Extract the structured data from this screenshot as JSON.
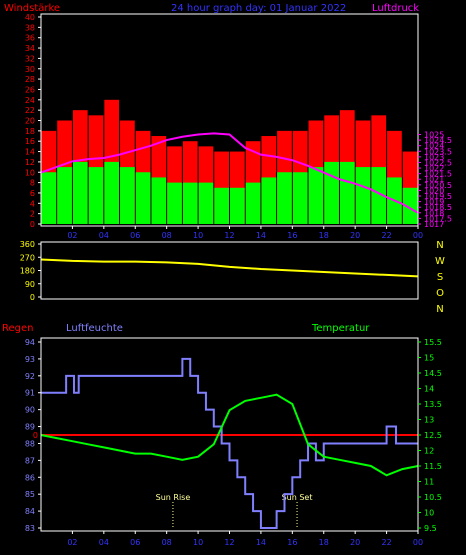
{
  "colors": {
    "wind_gust": "#ff0000",
    "wind_avg": "#00ff00",
    "pressure": "#ff00ff",
    "direction": "#ffff00",
    "humidity": "#8080ff",
    "temperature": "#00ff00",
    "rain": "#ff0000",
    "axis_blue": "#3333ff",
    "frame": "#ffffff",
    "sun_marker": "#ffff99"
  },
  "chart_data": [
    {
      "type": "bar",
      "title": "24 hour graph day: 01 Januar 2022",
      "ylabel": "Windstärke",
      "y2label": "Luftdruck",
      "ylim": [
        0,
        40
      ],
      "y2lim": [
        1017,
        1035.5
      ],
      "x_ticks": [
        "02",
        "04",
        "06",
        "08",
        "10",
        "12",
        "14",
        "16",
        "18",
        "20",
        "22",
        "00"
      ],
      "y_ticks": [
        "0",
        "2",
        "4",
        "6",
        "8",
        "10",
        "12",
        "14",
        "16",
        "18",
        "20",
        "22",
        "24",
        "26",
        "28",
        "30",
        "32",
        "34",
        "36",
        "38",
        "40"
      ],
      "y2_ticks": [
        "1017",
        "1017.5",
        "1018",
        "1018.5",
        "1019",
        "1019.5",
        "1020",
        "1020.5",
        "1021",
        "1021.5",
        "1022",
        "1022.5",
        "1023",
        "1023.5",
        "1024",
        "1024.5",
        "1025"
      ],
      "series": [
        {
          "id": "gust",
          "x_hours": [
            0,
            1,
            2,
            3,
            4,
            5,
            6,
            7,
            8,
            9,
            10,
            11,
            12,
            13,
            14,
            15,
            16,
            17,
            18,
            19,
            20,
            21,
            22,
            23
          ],
          "values": [
            18,
            20,
            22,
            21,
            24,
            20,
            18,
            17,
            15,
            16,
            15,
            14,
            14,
            16,
            17,
            18,
            18,
            20,
            21,
            22,
            20,
            21,
            18,
            14
          ]
        },
        {
          "id": "avg",
          "x_hours": [
            0,
            1,
            2,
            3,
            4,
            5,
            6,
            7,
            8,
            9,
            10,
            11,
            12,
            13,
            14,
            15,
            16,
            17,
            18,
            19,
            20,
            21,
            22,
            23
          ],
          "values": [
            10,
            11,
            12,
            11,
            12,
            11,
            10,
            9,
            8,
            8,
            8,
            7,
            7,
            8,
            9,
            10,
            10,
            11,
            12,
            12,
            11,
            11,
            9,
            7
          ]
        },
        {
          "id": "pressure",
          "x_hours": [
            0,
            1,
            2,
            3,
            4,
            5,
            6,
            7,
            8,
            9,
            10,
            11,
            12,
            13,
            14,
            15,
            16,
            17,
            18,
            19,
            20,
            21,
            22,
            23,
            24
          ],
          "values": [
            1021.6,
            1022.1,
            1022.6,
            1022.8,
            1022.9,
            1023.2,
            1023.6,
            1024.0,
            1024.5,
            1024.8,
            1025.0,
            1025.1,
            1025.0,
            1023.8,
            1023.2,
            1023.0,
            1022.7,
            1022.2,
            1021.6,
            1021.0,
            1020.6,
            1020.1,
            1019.4,
            1018.8,
            1018.0
          ]
        }
      ]
    },
    {
      "type": "line",
      "y_ticks": [
        "0",
        "90",
        "180",
        "270",
        "360"
      ],
      "ylim": [
        0,
        360
      ],
      "compass": [
        "N",
        "W",
        "S",
        "O",
        "N"
      ],
      "series": [
        {
          "id": "direction",
          "x_hours": [
            0,
            2,
            4,
            6,
            8,
            10,
            12,
            14,
            16,
            18,
            20,
            22,
            24
          ],
          "values": [
            255,
            245,
            240,
            240,
            235,
            225,
            205,
            190,
            180,
            170,
            160,
            150,
            140
          ]
        }
      ]
    },
    {
      "type": "line",
      "label_left": "Regen",
      "label_humidity": "Luftfeuchte",
      "label_temperature": "Temperatur",
      "ylim": [
        83,
        94
      ],
      "y2lim": [
        9.5,
        15.5
      ],
      "x_ticks": [
        "02",
        "04",
        "06",
        "08",
        "10",
        "12",
        "14",
        "16",
        "18",
        "20",
        "22",
        "00"
      ],
      "y_ticks": [
        "83",
        "84",
        "85",
        "86",
        "87",
        "88",
        "89",
        "90",
        "91",
        "92",
        "93",
        "94"
      ],
      "y2_ticks": [
        "9.5",
        "10",
        "10.5",
        "11",
        "11.5",
        "12",
        "12.5",
        "13",
        "13.5",
        "14",
        "14.5",
        "15",
        "15.5"
      ],
      "rain_label": "0",
      "annotations": [
        {
          "text": "Sun Rise",
          "x_hour": 8.4
        },
        {
          "text": "Sun Set",
          "x_hour": 16.3
        }
      ],
      "series": [
        {
          "id": "humidity",
          "x_hours": [
            0,
            1.4,
            1.6,
            2.1,
            2.4,
            7.5,
            9,
            9.5,
            10,
            10.5,
            11,
            11.5,
            12,
            12.5,
            13,
            13.5,
            14,
            14.5,
            15,
            15.5,
            16,
            16.5,
            17,
            17.5,
            18,
            21.4,
            22,
            22.6,
            23
          ],
          "values": [
            91,
            91,
            92,
            91,
            92,
            92,
            93,
            92,
            91,
            90,
            89,
            88,
            87,
            86,
            85,
            84,
            83,
            83,
            84,
            85,
            86,
            87,
            88,
            87,
            88,
            88,
            89,
            88,
            88
          ]
        },
        {
          "id": "temperature",
          "x_hours": [
            0,
            1,
            2,
            3,
            4,
            5,
            6,
            7,
            8,
            9,
            10,
            11,
            12,
            13,
            14,
            15,
            16,
            17,
            18,
            19,
            20,
            21,
            22,
            23,
            24
          ],
          "values": [
            12.5,
            12.4,
            12.3,
            12.2,
            12.1,
            12.0,
            11.9,
            11.9,
            11.8,
            11.7,
            11.8,
            12.2,
            13.3,
            13.6,
            13.7,
            13.8,
            13.5,
            12.2,
            11.8,
            11.7,
            11.6,
            11.5,
            11.2,
            11.4,
            11.5
          ]
        }
      ]
    }
  ]
}
